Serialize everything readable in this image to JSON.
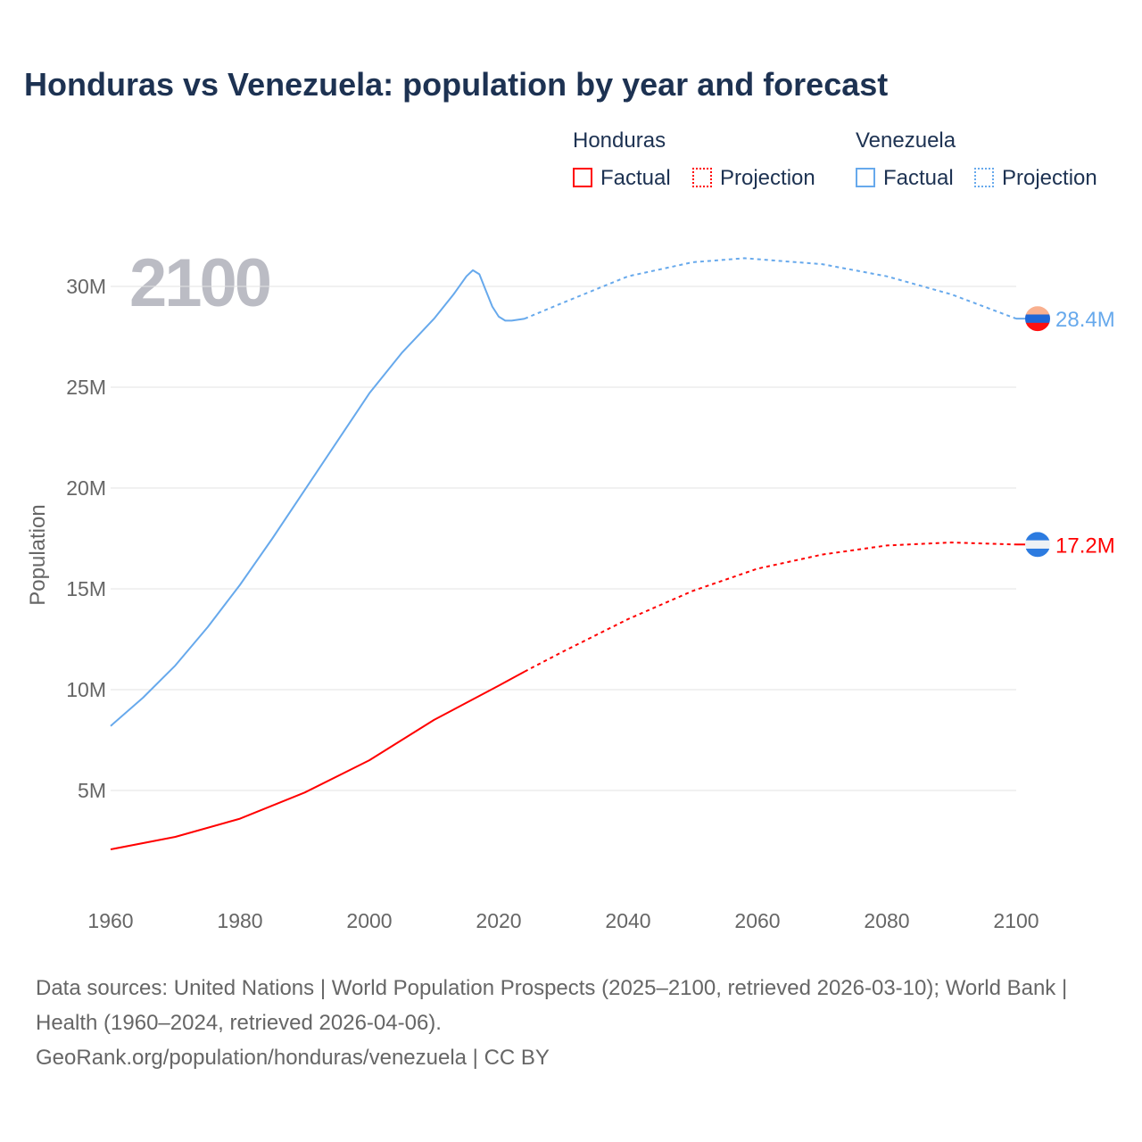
{
  "title": "Honduras vs Venezuela: population by year and forecast",
  "legend": {
    "groups": [
      {
        "name": "Honduras",
        "factual": "Factual",
        "projection": "Projection"
      },
      {
        "name": "Venezuela",
        "factual": "Factual",
        "projection": "Projection"
      }
    ]
  },
  "year_label": "2100",
  "source_line1": "Data sources: United Nations | World Population Prospects (2025–2100, retrieved 2026-03-10); World Bank | Health (1960–2024, retrieved 2026-04-06).",
  "source_line2": "GeoRank.org/population/honduras/venezuela | CC BY",
  "colors": {
    "honduras": "#ff0000",
    "venezuela": "#67a9ec"
  },
  "chart_data": {
    "type": "line",
    "title": "Honduras vs Venezuela: population by year and forecast",
    "xlabel": "",
    "ylabel": "Population",
    "xlim": [
      1960,
      2100
    ],
    "ylim": [
      0,
      32
    ],
    "xticks": [
      "1960",
      "1980",
      "2000",
      "2020",
      "2040",
      "2060",
      "2080",
      "2100"
    ],
    "yticks": [
      {
        "v": 5,
        "label": "5M"
      },
      {
        "v": 10,
        "label": "10M"
      },
      {
        "v": 15,
        "label": "15M"
      },
      {
        "v": 20,
        "label": "20M"
      },
      {
        "v": 25,
        "label": "25M"
      },
      {
        "v": 30,
        "label": "30M"
      }
    ],
    "series": [
      {
        "name": "Venezuela",
        "end_label": "28.4M",
        "factual": {
          "x": [
            1960,
            1965,
            1970,
            1975,
            1980,
            1985,
            1990,
            2000,
            2005,
            2010,
            2013,
            2015,
            2016,
            2017,
            2018,
            2019,
            2020,
            2021,
            2022,
            2024
          ],
          "y": [
            8.2,
            9.6,
            11.2,
            13.1,
            15.2,
            17.5,
            19.9,
            24.7,
            26.7,
            28.4,
            29.6,
            30.5,
            30.8,
            30.6,
            29.8,
            29.0,
            28.5,
            28.3,
            28.3,
            28.4
          ]
        },
        "projection": {
          "x": [
            2024,
            2030,
            2040,
            2050,
            2058,
            2070,
            2080,
            2090,
            2100
          ],
          "y": [
            28.4,
            29.2,
            30.5,
            31.2,
            31.4,
            31.1,
            30.5,
            29.6,
            28.4
          ]
        }
      },
      {
        "name": "Honduras",
        "end_label": "17.2M",
        "factual": {
          "x": [
            1960,
            1970,
            1980,
            1990,
            2000,
            2010,
            2020,
            2024
          ],
          "y": [
            2.08,
            2.7,
            3.6,
            4.9,
            6.5,
            8.5,
            10.2,
            10.9
          ]
        },
        "projection": {
          "x": [
            2024,
            2030,
            2040,
            2050,
            2060,
            2070,
            2080,
            2090,
            2100
          ],
          "y": [
            10.9,
            11.9,
            13.5,
            14.9,
            16.0,
            16.7,
            17.15,
            17.3,
            17.2
          ]
        }
      }
    ]
  }
}
